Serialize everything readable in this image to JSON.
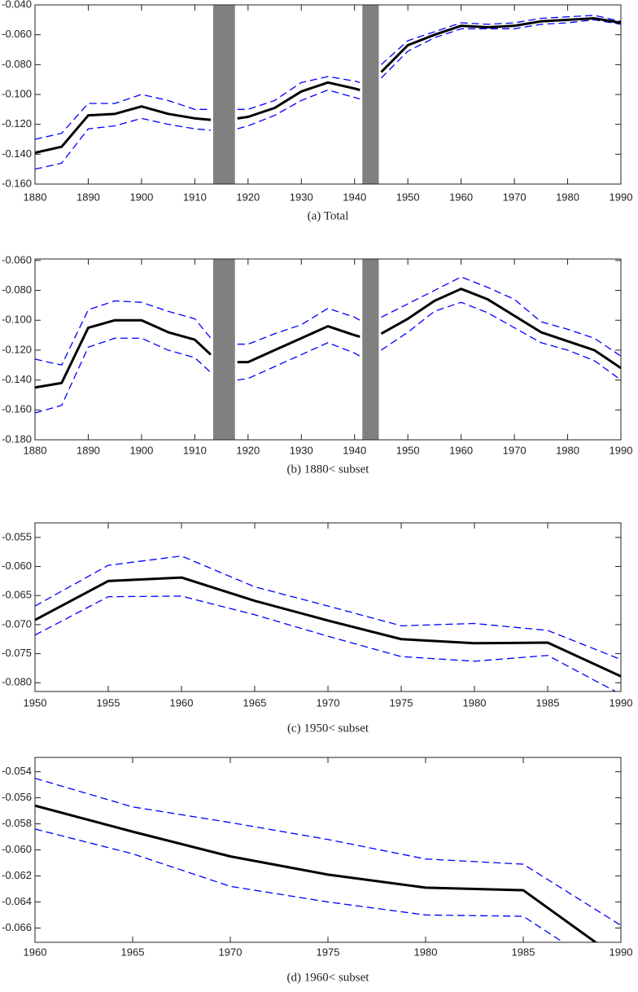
{
  "chart_data": [
    {
      "type": "line",
      "title": "(a) Total",
      "x": [
        1880,
        1885,
        1890,
        1895,
        1900,
        1905,
        1910,
        1913,
        1916,
        1918,
        1920,
        1925,
        1930,
        1935,
        1940,
        1941,
        1943,
        1945,
        1950,
        1955,
        1960,
        1965,
        1970,
        1975,
        1980,
        1985,
        1990
      ],
      "xlim": [
        1880,
        1990
      ],
      "xticks": [
        1880,
        1890,
        1900,
        1910,
        1920,
        1930,
        1940,
        1950,
        1960,
        1970,
        1980,
        1990
      ],
      "ylim": [
        -0.16,
        -0.04
      ],
      "yticks": [
        {
          "value": -0.16,
          "label": "-0.160"
        },
        {
          "value": -0.14,
          "label": "-0.140"
        },
        {
          "value": -0.12,
          "label": "-0.120"
        },
        {
          "value": -0.1,
          "label": "-0.100"
        },
        {
          "value": -0.08,
          "label": "-0.080"
        },
        {
          "value": -0.06,
          "label": "-0.060"
        },
        {
          "value": -0.04,
          "label": "-0.040"
        }
      ],
      "gap_color": "#808080",
      "series": [
        {
          "color": "#0000ff",
          "style": "dashed",
          "values": [
            -0.13,
            -0.126,
            -0.106,
            -0.106,
            -0.1,
            -0.104,
            -0.11,
            -0.11,
            null,
            -0.11,
            -0.11,
            -0.104,
            -0.092,
            -0.088,
            -0.091,
            -0.092,
            null,
            -0.08,
            -0.064,
            -0.058,
            -0.052,
            -0.053,
            -0.052,
            -0.049,
            -0.048,
            -0.047,
            -0.051
          ]
        },
        {
          "color": "#0000ff",
          "style": "dashed",
          "values": [
            -0.15,
            -0.146,
            -0.123,
            -0.121,
            -0.116,
            -0.12,
            -0.123,
            -0.124,
            null,
            -0.123,
            -0.121,
            -0.114,
            -0.104,
            -0.097,
            -0.102,
            -0.103,
            null,
            -0.089,
            -0.071,
            -0.062,
            -0.056,
            -0.056,
            -0.056,
            -0.053,
            -0.052,
            -0.05,
            -0.053
          ]
        },
        {
          "color": "#000000",
          "style": "solid",
          "values": [
            -0.139,
            -0.135,
            -0.114,
            -0.113,
            -0.108,
            -0.113,
            -0.116,
            -0.117,
            null,
            -0.116,
            -0.115,
            -0.109,
            -0.098,
            -0.092,
            -0.096,
            -0.097,
            null,
            -0.085,
            -0.067,
            -0.06,
            -0.054,
            -0.055,
            -0.054,
            -0.051,
            -0.05,
            -0.049,
            -0.052
          ]
        }
      ]
    },
    {
      "type": "line",
      "title": "(b) 1880< subset",
      "x": [
        1880,
        1885,
        1890,
        1895,
        1900,
        1905,
        1910,
        1913,
        1916,
        1918,
        1920,
        1925,
        1930,
        1935,
        1940,
        1941,
        1943,
        1945,
        1950,
        1955,
        1960,
        1965,
        1970,
        1975,
        1980,
        1985,
        1990
      ],
      "xlim": [
        1880,
        1990
      ],
      "xticks": [
        1880,
        1890,
        1900,
        1910,
        1920,
        1930,
        1940,
        1950,
        1960,
        1970,
        1980,
        1990
      ],
      "ylim": [
        -0.18,
        -0.059
      ],
      "yticks": [
        {
          "value": -0.18,
          "label": "-0.180"
        },
        {
          "value": -0.16,
          "label": "-0.160"
        },
        {
          "value": -0.14,
          "label": "-0.140"
        },
        {
          "value": -0.12,
          "label": "-0.120"
        },
        {
          "value": -0.1,
          "label": "-0.100"
        },
        {
          "value": -0.08,
          "label": "-0.080"
        },
        {
          "value": -0.06,
          "label": "-0.060"
        }
      ],
      "gap_color": "#808080",
      "series": [
        {
          "color": "#0000ff",
          "style": "dashed",
          "values": [
            -0.126,
            -0.13,
            -0.093,
            -0.087,
            -0.088,
            -0.094,
            -0.099,
            -0.112,
            null,
            -0.116,
            -0.116,
            -0.109,
            -0.103,
            -0.092,
            -0.098,
            -0.1,
            null,
            -0.098,
            -0.089,
            -0.08,
            -0.071,
            -0.078,
            -0.086,
            -0.101,
            -0.106,
            -0.112,
            -0.124
          ]
        },
        {
          "color": "#0000ff",
          "style": "dashed",
          "values": [
            -0.162,
            -0.157,
            -0.118,
            -0.112,
            -0.112,
            -0.12,
            -0.125,
            -0.135,
            null,
            -0.14,
            -0.139,
            -0.131,
            -0.123,
            -0.115,
            -0.122,
            -0.124,
            null,
            -0.12,
            -0.108,
            -0.094,
            -0.088,
            -0.095,
            -0.105,
            -0.115,
            -0.12,
            -0.127,
            -0.14
          ]
        },
        {
          "color": "#000000",
          "style": "solid",
          "values": [
            -0.145,
            -0.142,
            -0.105,
            -0.1,
            -0.1,
            -0.108,
            -0.113,
            -0.123,
            null,
            -0.128,
            -0.128,
            -0.12,
            -0.112,
            -0.104,
            -0.11,
            -0.111,
            null,
            -0.109,
            -0.099,
            -0.087,
            -0.079,
            -0.086,
            -0.097,
            -0.108,
            -0.114,
            -0.12,
            -0.132
          ]
        }
      ]
    },
    {
      "type": "line",
      "title": "(c) 1950< subset",
      "x": [
        1950,
        1955,
        1960,
        1965,
        1970,
        1975,
        1980,
        1985,
        1990
      ],
      "xlim": [
        1950,
        1990
      ],
      "xticks": [
        1950,
        1955,
        1960,
        1965,
        1970,
        1975,
        1980,
        1985,
        1990
      ],
      "ylim": [
        -0.0815,
        -0.0525
      ],
      "yticks": [
        {
          "value": -0.08,
          "label": "-0.080"
        },
        {
          "value": -0.075,
          "label": "-0.075"
        },
        {
          "value": -0.07,
          "label": "-0.070"
        },
        {
          "value": -0.065,
          "label": "-0.065"
        },
        {
          "value": -0.06,
          "label": "-0.060"
        },
        {
          "value": -0.055,
          "label": "-0.055"
        }
      ],
      "series": [
        {
          "color": "#0000ff",
          "style": "dashed",
          "values": [
            -0.0668,
            -0.0598,
            -0.0582,
            -0.0635,
            -0.0668,
            -0.0702,
            -0.0698,
            -0.071,
            -0.076
          ]
        },
        {
          "color": "#0000ff",
          "style": "dashed",
          "values": [
            -0.0718,
            -0.0652,
            -0.0651,
            -0.0683,
            -0.072,
            -0.0755,
            -0.0763,
            -0.0753,
            -0.082
          ]
        },
        {
          "color": "#000000",
          "style": "solid",
          "values": [
            -0.0692,
            -0.0625,
            -0.0619,
            -0.0659,
            -0.0693,
            -0.0725,
            -0.0732,
            -0.0731,
            -0.0789
          ]
        }
      ]
    },
    {
      "type": "line",
      "title": "(d) 1960< subset",
      "x": [
        1960,
        1965,
        1970,
        1975,
        1980,
        1985,
        1990
      ],
      "xlim": [
        1960,
        1990
      ],
      "xticks": [
        1960,
        1965,
        1970,
        1975,
        1980,
        1985,
        1990
      ],
      "ylim": [
        -0.0671,
        -0.0529
      ],
      "yticks": [
        {
          "value": -0.066,
          "label": "-0.066"
        },
        {
          "value": -0.064,
          "label": "-0.064"
        },
        {
          "value": -0.062,
          "label": "-0.062"
        },
        {
          "value": -0.06,
          "label": "-0.060"
        },
        {
          "value": -0.058,
          "label": "-0.058"
        },
        {
          "value": -0.056,
          "label": "-0.056"
        },
        {
          "value": -0.054,
          "label": "-0.054"
        }
      ],
      "series": [
        {
          "color": "#0000ff",
          "style": "dashed",
          "values": [
            -0.0545,
            -0.0567,
            -0.0579,
            -0.0592,
            -0.0607,
            -0.0611,
            -0.0658
          ]
        },
        {
          "color": "#0000ff",
          "style": "dashed",
          "values": [
            -0.0584,
            -0.0603,
            -0.0628,
            -0.064,
            -0.065,
            -0.0651,
            -0.07
          ]
        },
        {
          "color": "#000000",
          "style": "solid",
          "values": [
            -0.0566,
            -0.0586,
            -0.0605,
            -0.0619,
            -0.0629,
            -0.0631,
            -0.0685
          ]
        }
      ]
    }
  ]
}
